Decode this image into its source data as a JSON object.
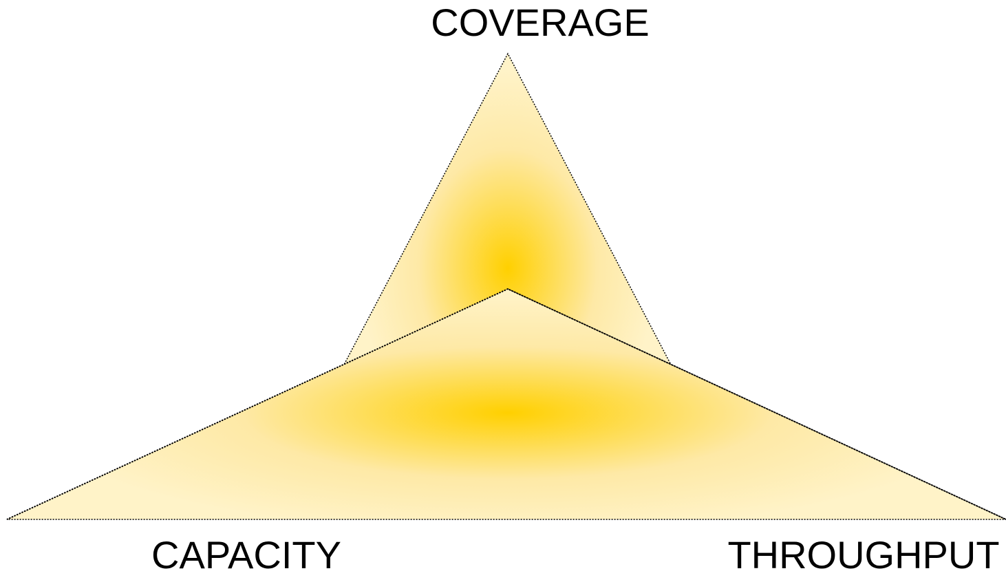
{
  "labels": {
    "top": "COVERAGE",
    "left": "CAPACITY",
    "right": "THROUGHPUT"
  }
}
